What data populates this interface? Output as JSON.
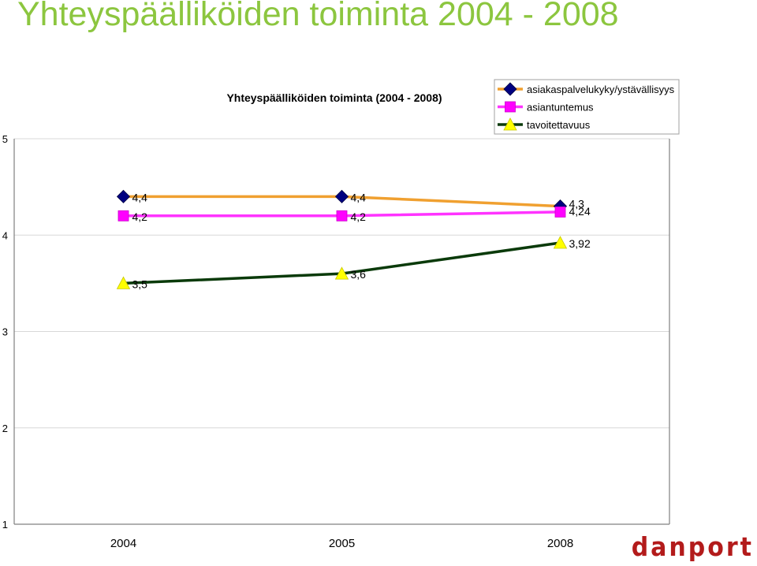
{
  "slide": {
    "title": "Yhteyspäälliköiden toiminta 2004 - 2008",
    "logo_text": "danport"
  },
  "chart_data": {
    "type": "line",
    "title": "Yhteyspäälliköiden toiminta (2004 - 2008)",
    "categories": [
      "2004",
      "2005",
      "2008"
    ],
    "ylim": [
      1,
      5
    ],
    "yticks": [
      "1",
      "2",
      "3",
      "4",
      "5"
    ],
    "grid": true,
    "legend_position": "top-right",
    "series": [
      {
        "name": "asiakaspalvelukyky/ystävällisyys",
        "values": [
          4.4,
          4.4,
          4.3
        ],
        "labels": [
          "4,4",
          "4,4",
          "4,3"
        ],
        "color": "#f0a030",
        "marker": "diamond",
        "marker_color": "#000080"
      },
      {
        "name": "asiantuntemus",
        "values": [
          4.2,
          4.2,
          4.24
        ],
        "labels": [
          "4,2",
          "4,2",
          "4,24"
        ],
        "color": "#ff33ff",
        "marker": "square",
        "marker_color": "#ff00ff"
      },
      {
        "name": "tavoitettavuus",
        "values": [
          3.5,
          3.6,
          3.92
        ],
        "labels": [
          "3,5",
          "3,6",
          "3,92"
        ],
        "color": "#0a3a0a",
        "marker": "triangle",
        "marker_color": "#ffff00"
      }
    ]
  }
}
